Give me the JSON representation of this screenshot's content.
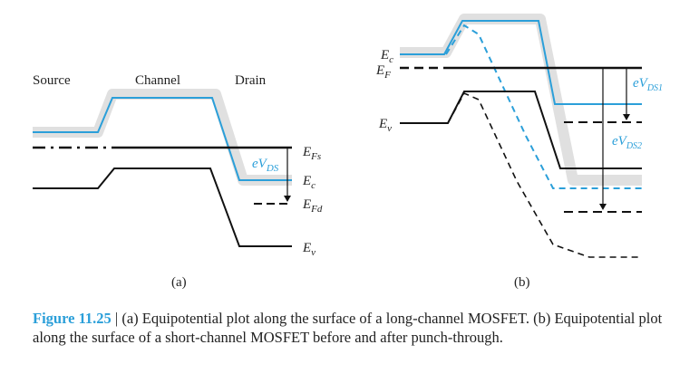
{
  "panel_a": {
    "region_labels": [
      "Source",
      "Channel",
      "Drain"
    ],
    "energy_labels": {
      "efs": {
        "base": "E",
        "sub": "Fs"
      },
      "ec": {
        "base": "E",
        "sub": "c"
      },
      "efd": {
        "base": "E",
        "sub": "Fd"
      },
      "ev": {
        "base": "E",
        "sub": "v"
      }
    },
    "voltage_label": {
      "base": "eV",
      "sub": "DS"
    },
    "panel_label": "(a)"
  },
  "panel_b": {
    "energy_labels": {
      "ec": {
        "base": "E",
        "sub": "c"
      },
      "ef": {
        "base": "E",
        "sub": "F"
      },
      "ev": {
        "base": "E",
        "sub": "v"
      }
    },
    "voltage_labels": [
      {
        "base": "eV",
        "sub": "DS1"
      },
      {
        "base": "eV",
        "sub": "DS2"
      }
    ],
    "panel_label": "(b)"
  },
  "caption": {
    "number": "Figure 11.25",
    "separator": " | ",
    "text": "(a) Equipotential plot along the surface of a long-channel MOSFET. (b) Equipotential plot along the surface of a short-channel MOSFET before and after punch-through."
  },
  "colors": {
    "band_blue": "#2b9fd9",
    "band_black": "#111111",
    "shadow_gray": "#e0e0e0",
    "caption_number": "#2b9fd9"
  }
}
